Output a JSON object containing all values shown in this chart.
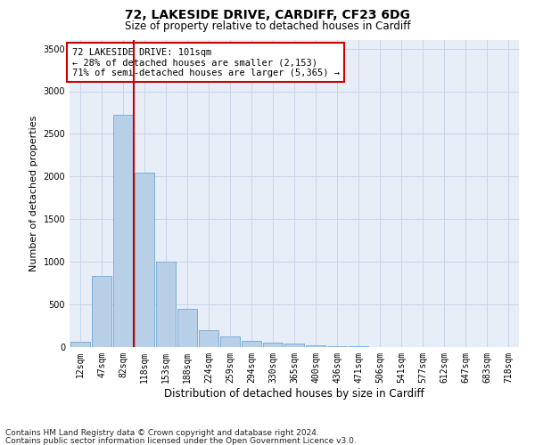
{
  "title_line1": "72, LAKESIDE DRIVE, CARDIFF, CF23 6DG",
  "title_line2": "Size of property relative to detached houses in Cardiff",
  "xlabel": "Distribution of detached houses by size in Cardiff",
  "ylabel": "Number of detached properties",
  "categories": [
    "12sqm",
    "47sqm",
    "82sqm",
    "118sqm",
    "153sqm",
    "188sqm",
    "224sqm",
    "259sqm",
    "294sqm",
    "330sqm",
    "365sqm",
    "400sqm",
    "436sqm",
    "471sqm",
    "506sqm",
    "541sqm",
    "577sqm",
    "612sqm",
    "647sqm",
    "683sqm",
    "718sqm"
  ],
  "values": [
    60,
    830,
    2720,
    2050,
    1000,
    450,
    200,
    130,
    70,
    55,
    40,
    20,
    15,
    10,
    5,
    0,
    0,
    0,
    0,
    0,
    0
  ],
  "bar_color": "#b8cfe8",
  "bar_edge_color": "#6fa8d4",
  "red_line_idx": 2.5,
  "annotation_text": "72 LAKESIDE DRIVE: 101sqm\n← 28% of detached houses are smaller (2,153)\n71% of semi-detached houses are larger (5,365) →",
  "annotation_box_facecolor": "#ffffff",
  "annotation_box_edgecolor": "#cc0000",
  "red_line_color": "#cc0000",
  "ylim": [
    0,
    3600
  ],
  "yticks": [
    0,
    500,
    1000,
    1500,
    2000,
    2500,
    3000,
    3500
  ],
  "grid_color": "#c8d4e8",
  "background_color": "#e8eef8",
  "footer_line1": "Contains HM Land Registry data © Crown copyright and database right 2024.",
  "footer_line2": "Contains public sector information licensed under the Open Government Licence v3.0.",
  "title_fontsize": 10,
  "subtitle_fontsize": 8.5,
  "tick_fontsize": 7,
  "ylabel_fontsize": 8,
  "xlabel_fontsize": 8.5,
  "annotation_fontsize": 7.5,
  "footer_fontsize": 6.5
}
